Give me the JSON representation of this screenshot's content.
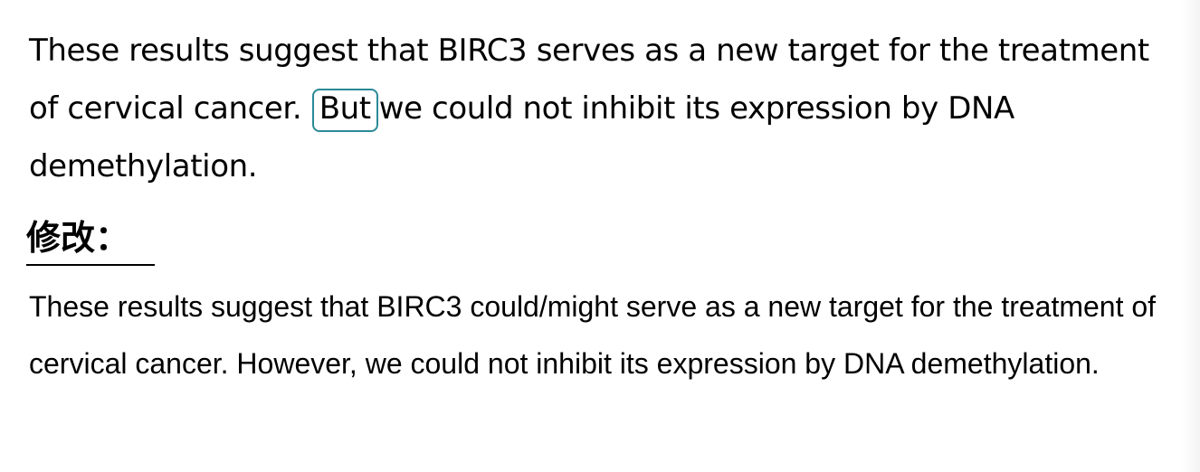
{
  "original": {
    "before": "These results suggest that BIRC3 serves as a new target for the treatment of cervical cancer.",
    "highlighted": "But",
    "after": "we could not inhibit its expression by DNA demethylation."
  },
  "heading": "修改：",
  "revised": "These results suggest that BIRC3 could/might serve as a new target for the treatment of cervical cancer. However, we could not inhibit its expression by DNA demethylation."
}
